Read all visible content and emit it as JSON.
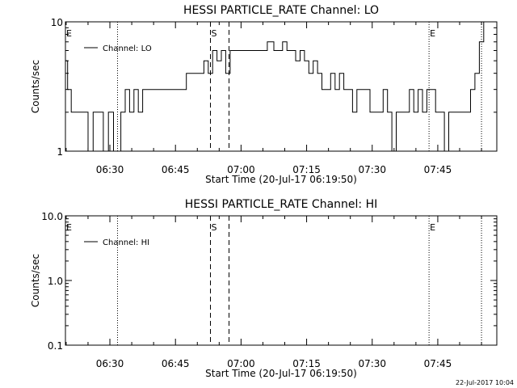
{
  "chart_data": [
    {
      "type": "line",
      "title": "HESSI PARTICLE_RATE Channel: LO",
      "xlabel": "Start Time (20-Jul-17 06:19:50)",
      "ylabel": "Counts/sec",
      "y_scale": "log",
      "ylim": [
        1,
        10
      ],
      "y_tick_labels": [
        "1",
        "10"
      ],
      "xlim": [
        "06:19:50",
        "07:58:30"
      ],
      "x_tick_labels": [
        "06:30",
        "06:45",
        "07:00",
        "07:15",
        "07:30",
        "07:45"
      ],
      "legend": {
        "position": "top-left",
        "entries": [
          "Channel: LO"
        ]
      },
      "markers": [
        {
          "label": "E",
          "time": "06:19:50",
          "style": "none"
        },
        {
          "label": "",
          "time": "06:31:45",
          "style": "dotted"
        },
        {
          "label": "S",
          "time": "06:53:00",
          "style": "dashed"
        },
        {
          "label": "",
          "time": "06:57:15",
          "style": "dashed"
        },
        {
          "label": "E",
          "time": "07:43:00",
          "style": "dotted"
        },
        {
          "label": "",
          "time": "07:55:00",
          "style": "dotted"
        }
      ],
      "series": [
        {
          "name": "Channel: LO",
          "x": [
            "06:19:50",
            "06:20:20",
            "06:21:10",
            "06:22:00",
            "06:22:40",
            "06:23:50",
            "06:25:00",
            "06:26:10",
            "06:27:20",
            "06:28:30",
            "06:29:40",
            "06:30:50",
            "06:31:30",
            "06:32:30",
            "06:33:30",
            "06:34:30",
            "06:35:30",
            "06:36:30",
            "06:37:30",
            "06:38:30",
            "06:40:00",
            "06:41:00",
            "06:43:00",
            "06:45:00",
            "06:46:30",
            "06:47:30",
            "06:48:30",
            "06:49:30",
            "06:50:30",
            "06:51:30",
            "06:52:30",
            "06:53:30",
            "06:54:30",
            "06:55:30",
            "06:56:30",
            "06:57:30",
            "06:58:30",
            "06:59:30",
            "07:00:30",
            "07:01:30",
            "07:03:00",
            "07:04:30",
            "07:06:00",
            "07:07:30",
            "07:08:30",
            "07:09:30",
            "07:10:30",
            "07:11:30",
            "07:12:30",
            "07:13:30",
            "07:14:30",
            "07:15:30",
            "07:16:30",
            "07:17:30",
            "07:18:30",
            "07:19:30",
            "07:20:30",
            "07:21:30",
            "07:22:30",
            "07:23:30",
            "07:24:30",
            "07:25:30",
            "07:26:30",
            "07:27:30",
            "07:28:30",
            "07:29:30",
            "07:30:30",
            "07:31:30",
            "07:32:30",
            "07:33:30",
            "07:34:30",
            "07:35:30",
            "07:36:30",
            "07:37:30",
            "07:38:30",
            "07:39:30",
            "07:40:30",
            "07:41:30",
            "07:42:30",
            "07:43:30",
            "07:44:30",
            "07:45:30",
            "07:46:30",
            "07:47:30",
            "07:48:30",
            "07:49:30",
            "07:50:30",
            "07:51:30",
            "07:52:30",
            "07:53:30",
            "07:54:30",
            "07:55:30"
          ],
          "y": [
            5,
            3,
            2,
            2,
            2,
            2,
            1,
            2,
            2,
            1,
            2,
            1,
            1,
            2,
            3,
            2,
            3,
            2,
            3,
            3,
            3,
            3,
            3,
            3,
            3,
            4,
            4,
            4,
            4,
            5,
            4,
            6,
            5,
            6,
            4,
            6,
            6,
            6,
            6,
            6,
            6,
            6,
            7,
            6,
            6,
            7,
            6,
            6,
            5,
            6,
            5,
            4,
            5,
            4,
            3,
            3,
            4,
            3,
            4,
            3,
            3,
            2,
            3,
            3,
            3,
            2,
            2,
            2,
            3,
            2,
            1,
            2,
            2,
            2,
            3,
            2,
            3,
            2,
            3,
            3,
            2,
            2,
            1,
            2,
            2,
            2,
            2,
            2,
            3,
            4,
            7,
            10
          ]
        }
      ]
    },
    {
      "type": "line",
      "title": "HESSI PARTICLE_RATE Channel: HI",
      "xlabel": "Start Time (20-Jul-17 06:19:50)",
      "ylabel": "Counts/sec",
      "y_scale": "log",
      "ylim": [
        0.1,
        10
      ],
      "y_tick_labels": [
        "0.1",
        "1.0",
        "10.0"
      ],
      "xlim": [
        "06:19:50",
        "07:58:30"
      ],
      "x_tick_labels": [
        "06:30",
        "06:45",
        "07:00",
        "07:15",
        "07:30",
        "07:45"
      ],
      "legend": {
        "position": "top-left",
        "entries": [
          "Channel: HI"
        ]
      },
      "markers": [
        {
          "label": "E",
          "time": "06:19:50",
          "style": "none"
        },
        {
          "label": "",
          "time": "06:31:45",
          "style": "dotted"
        },
        {
          "label": "S",
          "time": "06:53:00",
          "style": "dashed"
        },
        {
          "label": "",
          "time": "06:57:15",
          "style": "dashed"
        },
        {
          "label": "E",
          "time": "07:43:00",
          "style": "dotted"
        },
        {
          "label": "",
          "time": "07:55:00",
          "style": "dotted"
        }
      ],
      "series": [
        {
          "name": "Channel: HI",
          "x": [],
          "y": []
        }
      ]
    }
  ],
  "timestamp": "22-Jul-2017 10:04"
}
